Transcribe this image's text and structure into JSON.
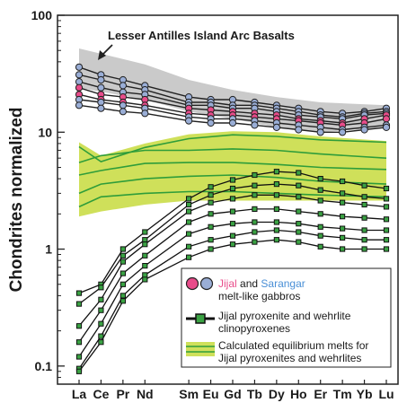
{
  "chart_data": {
    "type": "line",
    "ylabel": "Chondrites normalized",
    "yscale": "log",
    "ylim": [
      0.07,
      100
    ],
    "yticks": [
      {
        "value": 0.1,
        "label": "0.1"
      },
      {
        "value": 1,
        "label": "1"
      },
      {
        "value": 10,
        "label": "10"
      },
      {
        "value": 100,
        "label": "100"
      }
    ],
    "categories": [
      "La",
      "Ce",
      "Pr",
      "Nd",
      "Sm",
      "Eu",
      "Gd",
      "Tb",
      "Dy",
      "Ho",
      "Er",
      "Tm",
      "Yb",
      "Lu"
    ],
    "category_positions": [
      1,
      2,
      3,
      4,
      6,
      7,
      8,
      9,
      10,
      11,
      12,
      13,
      14,
      15
    ],
    "annotation": "Lesser Antilles Island Arc Basalts",
    "lesser_antilles_band": {
      "x": [
        1,
        4,
        6,
        8,
        10,
        12,
        15
      ],
      "lower": [
        24,
        19,
        15,
        13,
        11,
        10,
        11
      ],
      "upper": [
        52,
        38,
        28,
        23,
        20,
        18,
        17
      ]
    },
    "equilibrium_melts": {
      "band": {
        "x": [
          1,
          2,
          4,
          6,
          8,
          10,
          12,
          15
        ],
        "lower": [
          1.9,
          2.1,
          2.4,
          2.6,
          2.6,
          2.6,
          2.6,
          2.6
        ],
        "upper": [
          8.2,
          6.3,
          8.0,
          9.6,
          10.2,
          10.0,
          9.2,
          8.4
        ]
      },
      "curves": [
        {
          "x": [
            1,
            2,
            4,
            6,
            8,
            10,
            12,
            15
          ],
          "y": [
            7.5,
            5.6,
            7.4,
            8.8,
            9.5,
            9.2,
            8.6,
            8.2
          ]
        },
        {
          "x": [
            1,
            2,
            4,
            6,
            8,
            10,
            12,
            15
          ],
          "y": [
            5.5,
            6.3,
            7.0,
            7.0,
            7.2,
            7.0,
            6.5,
            6.0
          ]
        },
        {
          "x": [
            1,
            2,
            4,
            6,
            8,
            10,
            12,
            15
          ],
          "y": [
            4.3,
            4.7,
            5.4,
            5.5,
            5.5,
            5.3,
            5.0,
            4.8
          ]
        },
        {
          "x": [
            1,
            2,
            4,
            6,
            8,
            10,
            12,
            15
          ],
          "y": [
            3.0,
            3.6,
            4.0,
            4.2,
            4.3,
            4.1,
            3.8,
            3.6
          ]
        },
        {
          "x": [
            1,
            2,
            4,
            6,
            8,
            10,
            12,
            15
          ],
          "y": [
            2.3,
            2.8,
            3.0,
            3.1,
            3.1,
            3.0,
            2.9,
            2.8
          ]
        }
      ]
    },
    "gabbros": [
      {
        "color": "#9aaed6",
        "x": [
          1,
          2,
          3,
          4,
          6,
          7,
          8,
          9,
          10,
          11,
          12,
          13,
          14,
          15
        ],
        "y": [
          36,
          31,
          28,
          25,
          20,
          19,
          19,
          18,
          17,
          16,
          15,
          14.5,
          15,
          16
        ]
      },
      {
        "color": "#9aaed6",
        "x": [
          1,
          2,
          3,
          4,
          6,
          7,
          8,
          9,
          10,
          11,
          12,
          13,
          14,
          15
        ],
        "y": [
          31,
          28,
          25,
          23,
          18,
          18,
          17,
          17,
          16,
          15,
          14,
          13.5,
          14.5,
          15
        ]
      },
      {
        "color": "#9aaed6",
        "x": [
          1,
          2,
          3,
          4,
          6,
          7,
          8,
          9,
          10,
          11,
          12,
          13,
          14,
          15
        ],
        "y": [
          27,
          24,
          22,
          21,
          17,
          17,
          16,
          16,
          15,
          14,
          13.5,
          13,
          14,
          14.5
        ]
      },
      {
        "color": "#e84c8a",
        "x": [
          1,
          2,
          3,
          4,
          6,
          7,
          8,
          9,
          10,
          11,
          12,
          13,
          14,
          15
        ],
        "y": [
          24,
          21,
          20,
          19,
          16,
          15.5,
          15,
          14.5,
          14,
          13,
          12.5,
          12,
          13,
          14
        ]
      },
      {
        "color": "#e84c8a",
        "x": [
          1,
          2,
          3,
          4,
          6,
          7,
          8,
          9,
          10,
          11,
          12,
          13,
          14,
          15
        ],
        "y": [
          21,
          19,
          18,
          17,
          14.5,
          14,
          14,
          13.5,
          13,
          12.5,
          12,
          11.5,
          12,
          13
        ]
      },
      {
        "color": "#9aaed6",
        "x": [
          1,
          2,
          3,
          4,
          6,
          7,
          8,
          9,
          10,
          11,
          12,
          13,
          14,
          15
        ],
        "y": [
          19,
          18,
          17,
          16,
          13.5,
          13,
          13,
          12.5,
          12,
          11.5,
          11,
          10.5,
          11,
          11.5
        ]
      },
      {
        "color": "#9aaed6",
        "x": [
          1,
          2,
          3,
          4,
          6,
          7,
          8,
          9,
          10,
          11,
          12,
          13,
          14,
          15
        ],
        "y": [
          17,
          16,
          15,
          14.5,
          12.5,
          12,
          12,
          11.5,
          11,
          10.5,
          10,
          10,
          10.5,
          11
        ]
      }
    ],
    "clinopyroxenes": [
      {
        "x": [
          1,
          2,
          3,
          4,
          6,
          7,
          8,
          9,
          10,
          11,
          12,
          13,
          14,
          15
        ],
        "y": [
          0.42,
          0.5,
          1.0,
          1.4,
          2.7,
          3.4,
          3.9,
          4.3,
          4.6,
          4.5,
          4.0,
          3.8,
          3.5,
          3.3
        ]
      },
      {
        "x": [
          1,
          2,
          3,
          4,
          6,
          7,
          8,
          9,
          10,
          11,
          12,
          13,
          14,
          15
        ],
        "y": [
          0.34,
          0.47,
          0.88,
          1.2,
          2.4,
          2.9,
          3.3,
          3.5,
          3.6,
          3.5,
          3.2,
          3.0,
          2.8,
          2.7
        ]
      },
      {
        "x": [
          1,
          2,
          3,
          4,
          6,
          7,
          8,
          9,
          10,
          11,
          12,
          13,
          14,
          15
        ],
        "y": [
          0.22,
          0.37,
          0.78,
          1.1,
          2.1,
          2.5,
          2.7,
          2.9,
          2.9,
          2.8,
          2.6,
          2.5,
          2.4,
          2.3
        ]
      },
      {
        "x": [
          1,
          2,
          3,
          4,
          6,
          7,
          8,
          9,
          10,
          11,
          12,
          13,
          14,
          15
        ],
        "y": [
          0.16,
          0.3,
          0.62,
          0.88,
          1.7,
          2.0,
          2.1,
          2.2,
          2.2,
          2.1,
          2.0,
          1.9,
          1.85,
          1.8
        ]
      },
      {
        "x": [
          1,
          2,
          3,
          4,
          6,
          7,
          8,
          9,
          10,
          11,
          12,
          13,
          14,
          15
        ],
        "y": [
          0.12,
          0.23,
          0.5,
          0.72,
          1.35,
          1.55,
          1.65,
          1.7,
          1.7,
          1.65,
          1.55,
          1.5,
          1.45,
          1.45
        ]
      },
      {
        "x": [
          1,
          2,
          3,
          4,
          6,
          7,
          8,
          9,
          10,
          11,
          12,
          13,
          14,
          15
        ],
        "y": [
          0.095,
          0.18,
          0.4,
          0.6,
          1.05,
          1.2,
          1.3,
          1.4,
          1.45,
          1.4,
          1.3,
          1.25,
          1.2,
          1.2
        ]
      },
      {
        "x": [
          1,
          2,
          3,
          4,
          6,
          7,
          8,
          9,
          10,
          11,
          12,
          13,
          14,
          15
        ],
        "y": [
          0.09,
          0.16,
          0.36,
          0.55,
          0.85,
          1.0,
          1.1,
          1.15,
          1.2,
          1.15,
          1.05,
          1.0,
          1.0,
          1.0
        ]
      }
    ],
    "legend": {
      "gabbro_word1": "Jijal",
      "gabbro_word2": "and",
      "gabbro_word3": "Sarangar",
      "gabbro_line2": "melt-like gabbros",
      "cpx_line1": "Jijal pyroxenite and wehrlite",
      "cpx_line2": "clinopyroxenes",
      "melt_line1": "Calculated equilibrium melts for",
      "melt_line2": "Jijal pyroxenites and wehrlites",
      "jijal_color": "#e84c8a",
      "sarangar_color": "#4a8fd6"
    },
    "colors": {
      "band_gray": "#c4c4c4",
      "melt_band": "#cfe05a",
      "melt_curve": "#2f9d3a",
      "cpx_marker": "#3aa243",
      "gabbro_line": "#222222"
    }
  }
}
